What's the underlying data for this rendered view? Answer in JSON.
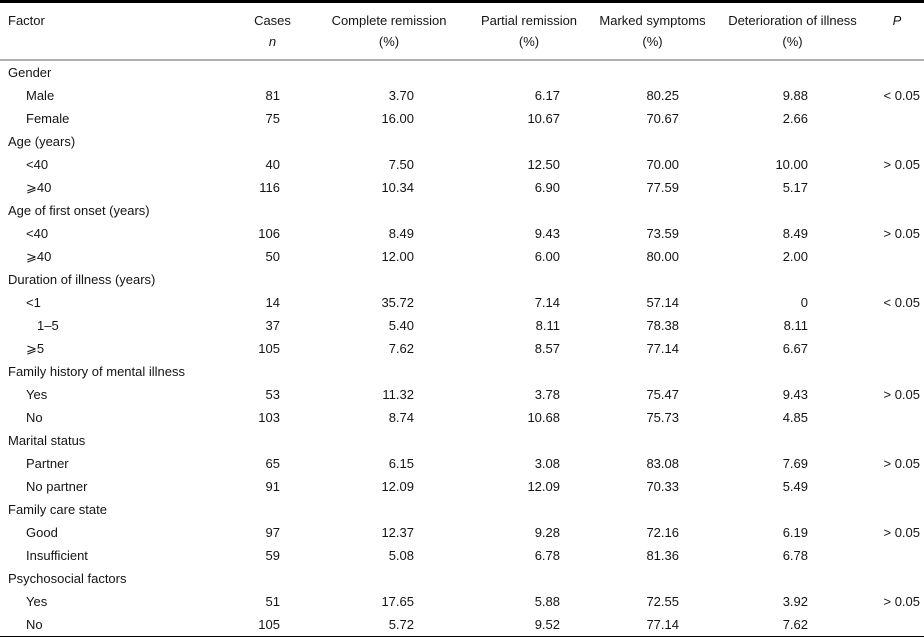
{
  "table": {
    "columns": [
      {
        "label": "Factor",
        "sub": ""
      },
      {
        "label": "Cases",
        "sub": "n"
      },
      {
        "label": "Complete remission",
        "sub": "(%)"
      },
      {
        "label": "Partial remission",
        "sub": "(%)"
      },
      {
        "label": "Marked symptoms",
        "sub": "(%)"
      },
      {
        "label": "Deterioration of illness",
        "sub": "(%)"
      },
      {
        "label": "P",
        "sub": ""
      }
    ],
    "rows": [
      {
        "type": "category",
        "factor": "Gender"
      },
      {
        "type": "data",
        "factor": "Male",
        "cases": "81",
        "complete": "3.70",
        "partial": "6.17",
        "marked": "80.25",
        "deterioration": "9.88",
        "p": "< 0.05"
      },
      {
        "type": "data",
        "factor": "Female",
        "cases": "75",
        "complete": "16.00",
        "partial": "10.67",
        "marked": "70.67",
        "deterioration": "2.66",
        "p": ""
      },
      {
        "type": "category",
        "factor": "Age (years)"
      },
      {
        "type": "data",
        "factor": "<40",
        "cases": "40",
        "complete": "7.50",
        "partial": "12.50",
        "marked": "70.00",
        "deterioration": "10.00",
        "p": "> 0.05"
      },
      {
        "type": "data",
        "factor": "⩾40",
        "cases": "116",
        "complete": "10.34",
        "partial": "6.90",
        "marked": "77.59",
        "deterioration": "5.17",
        "p": ""
      },
      {
        "type": "category",
        "factor": "Age of first onset (years)"
      },
      {
        "type": "data",
        "factor": "<40",
        "cases": "106",
        "complete": "8.49",
        "partial": "9.43",
        "marked": "73.59",
        "deterioration": "8.49",
        "p": "> 0.05"
      },
      {
        "type": "data",
        "factor": "⩾40",
        "cases": "50",
        "complete": "12.00",
        "partial": "6.00",
        "marked": "80.00",
        "deterioration": "2.00",
        "p": ""
      },
      {
        "type": "category",
        "factor": "Duration of illness (years)"
      },
      {
        "type": "data",
        "factor": "<1",
        "cases": "14",
        "complete": "35.72",
        "partial": "7.14",
        "marked": "57.14",
        "deterioration": "0",
        "p": "< 0.05"
      },
      {
        "type": "data",
        "factor": "1–5",
        "indent": 2,
        "cases": "37",
        "complete": "5.40",
        "partial": "8.11",
        "marked": "78.38",
        "deterioration": "8.11",
        "p": ""
      },
      {
        "type": "data",
        "factor": "⩾5",
        "cases": "105",
        "complete": "7.62",
        "partial": "8.57",
        "marked": "77.14",
        "deterioration": "6.67",
        "p": ""
      },
      {
        "type": "category",
        "factor": "Family history of mental illness"
      },
      {
        "type": "data",
        "factor": "Yes",
        "cases": "53",
        "complete": "11.32",
        "partial": "3.78",
        "marked": "75.47",
        "deterioration": "9.43",
        "p": "> 0.05"
      },
      {
        "type": "data",
        "factor": "No",
        "cases": "103",
        "complete": "8.74",
        "partial": "10.68",
        "marked": "75.73",
        "deterioration": "4.85",
        "p": ""
      },
      {
        "type": "category",
        "factor": "Marital status"
      },
      {
        "type": "data",
        "factor": "Partner",
        "cases": "65",
        "complete": "6.15",
        "partial": "3.08",
        "marked": "83.08",
        "deterioration": "7.69",
        "p": "> 0.05"
      },
      {
        "type": "data",
        "factor": "No partner",
        "cases": "91",
        "complete": "12.09",
        "partial": "12.09",
        "marked": "70.33",
        "deterioration": "5.49",
        "p": ""
      },
      {
        "type": "category",
        "factor": "Family care state"
      },
      {
        "type": "data",
        "factor": "Good",
        "cases": "97",
        "complete": "12.37",
        "partial": "9.28",
        "marked": "72.16",
        "deterioration": "6.19",
        "p": "> 0.05"
      },
      {
        "type": "data",
        "factor": "Insufficient",
        "cases": "59",
        "complete": "5.08",
        "partial": "6.78",
        "marked": "81.36",
        "deterioration": "6.78",
        "p": ""
      },
      {
        "type": "category",
        "factor": "Psychosocial factors"
      },
      {
        "type": "data",
        "factor": "Yes",
        "cases": "51",
        "complete": "17.65",
        "partial": "5.88",
        "marked": "72.55",
        "deterioration": "3.92",
        "p": "> 0.05"
      },
      {
        "type": "data",
        "factor": "No",
        "cases": "105",
        "complete": "5.72",
        "partial": "9.52",
        "marked": "77.14",
        "deterioration": "7.62",
        "p": ""
      }
    ]
  }
}
